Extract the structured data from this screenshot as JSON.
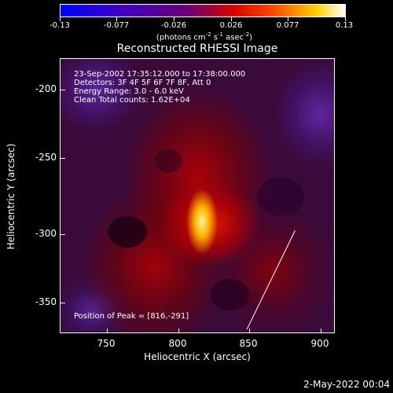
{
  "colorbar": {
    "labels": [
      "-0.13",
      "-0.077",
      "-0.026",
      "0.026",
      "0.077",
      "0.13"
    ],
    "unit_prefix": "(photons cm",
    "unit_sup1": "-2",
    "unit_mid1": " s",
    "unit_sup2": "-1",
    "unit_mid2": " asec",
    "unit_sup3": "-2",
    "unit_suffix": ")"
  },
  "title": "Reconstructed RHESSI Image",
  "info": {
    "line1": "23-Sep-2002 17:35:12.000 to 17:38:00.000",
    "line2": "Detectors: 3F 4F 5F 6F 7F 8F, Att 0",
    "line3": "Energy Range: 3.0 - 6.0 keV",
    "line4": "Clean     Total counts: 1.62E+04"
  },
  "peak_label": "Position of Peak = [816,-291]",
  "axes": {
    "x_title": "Heliocentric X (arcsec)",
    "y_title": "Heliocentric Y (arcsec)",
    "x_ticks": [
      "750",
      "800",
      "850",
      "900"
    ],
    "y_ticks": [
      "-200",
      "-250",
      "-300",
      "-350"
    ]
  },
  "footer_date": "2-May-2022 00:04"
}
